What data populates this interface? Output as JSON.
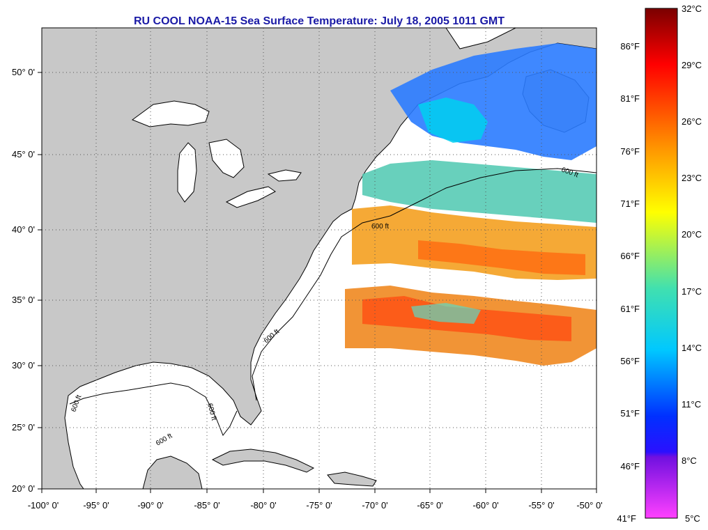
{
  "title": "RU COOL  NOAA-15  Sea Surface Temperature:  July 18, 2005 1011 GMT",
  "map": {
    "lon_range": [
      -100,
      -50
    ],
    "lat_range": [
      20,
      52.5
    ],
    "lat_labels": [
      "50° 0'",
      "45° 0'",
      "40° 0'",
      "35° 0'",
      "30° 0'",
      "25° 0'",
      "20° 0'"
    ],
    "lon_labels": [
      "-100° 0'",
      "-95° 0'",
      "-90° 0'",
      "-85° 0'",
      "-80° 0'",
      "-75° 0'",
      "-70° 0'",
      "-65° 0'",
      "-60° 0'",
      "-55° 0'",
      "-50° 0'"
    ],
    "contour_labels": [
      "600 ft",
      "600 ft",
      "600 ft",
      "600 ft",
      "600 ft",
      "600 ft"
    ],
    "colors": {
      "land": "#c8c8c8",
      "ocean": "#ffffff",
      "grid": "#555555"
    }
  },
  "colorbar": {
    "celsius_labels": [
      "32°C",
      "29°C",
      "26°C",
      "23°C",
      "20°C",
      "17°C",
      "14°C",
      "11°C",
      "8°C",
      "5°C"
    ],
    "fahrenheit_labels": [
      "86°F",
      "81°F",
      "76°F",
      "71°F",
      "66°F",
      "61°F",
      "56°F",
      "51°F",
      "46°F",
      "41°F"
    ],
    "stops": [
      "#8b0000",
      "#ff0000",
      "#ff8000",
      "#ffff00",
      "#00ffff",
      "#0000ff",
      "#8b00ff",
      "#ff00ff"
    ]
  }
}
